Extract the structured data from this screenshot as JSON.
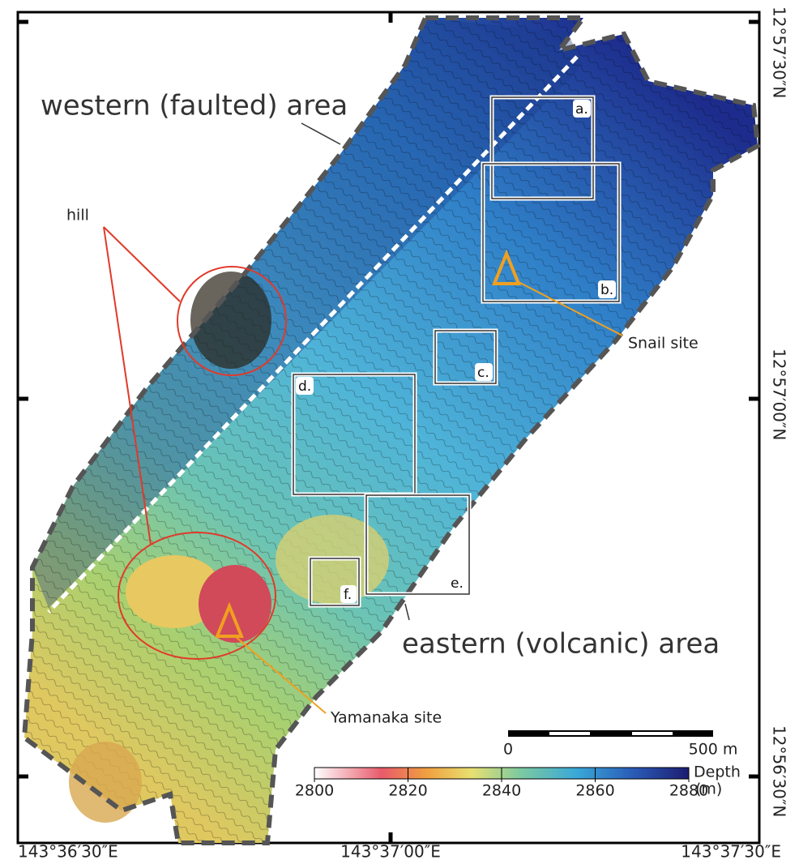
{
  "labels": {
    "western": "western (faulted) area",
    "eastern": "eastern (volcanic) area",
    "hill": "hill",
    "snail": "Snail site",
    "yamanaka": "Yamanaka site"
  },
  "boxes": [
    "a.",
    "b.",
    "c.",
    "d.",
    "e.",
    "f."
  ],
  "coordinates": {
    "longitude": [
      "143°36′30″E",
      "143°37′00″E",
      "143°37′30″E"
    ],
    "latitude": [
      "12°57′30″N",
      "12°57′00″N",
      "12°56′30″N"
    ]
  },
  "scale_bar": {
    "start": "0",
    "end": "500 m"
  },
  "colorbar": {
    "title": "Depth",
    "unit": "(m)",
    "range": [
      2800,
      2880
    ],
    "ticks": [
      2800,
      2820,
      2840,
      2860,
      2880
    ]
  }
}
